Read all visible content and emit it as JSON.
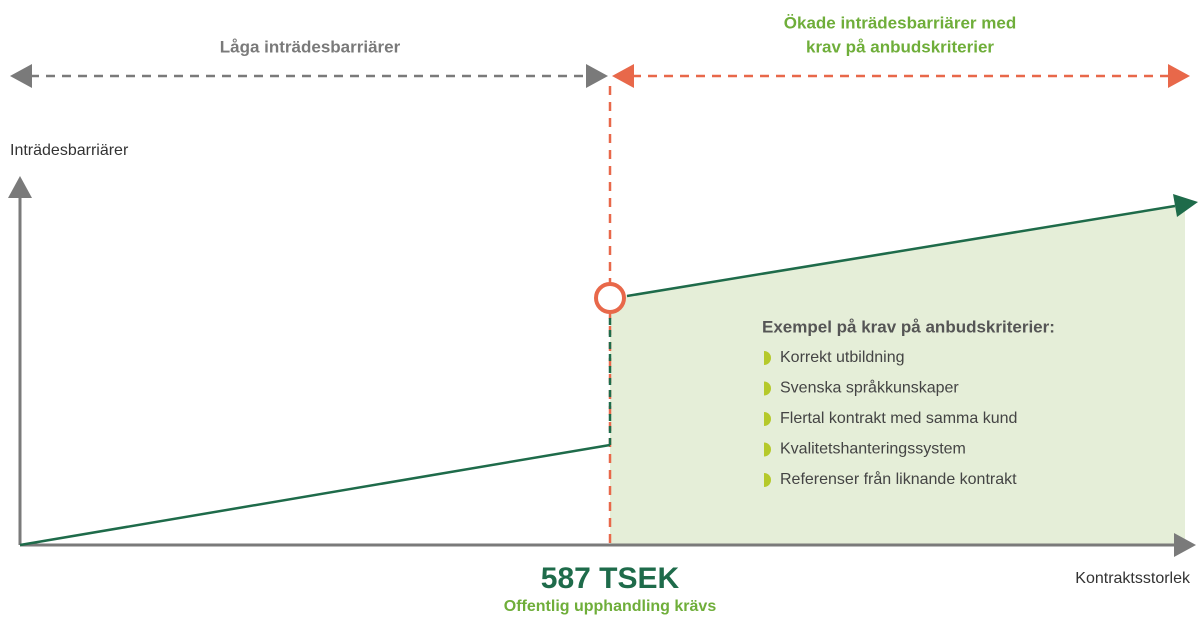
{
  "header": {
    "left_label": "Låga inträdesbarriärer",
    "right_label_line1": "Ökade inträdesbarriärer med",
    "right_label_line2": "krav på anbudskriterier"
  },
  "axes": {
    "y_label": "Inträdesbarriärer",
    "x_label": "Kontraktsstorlek"
  },
  "threshold": {
    "amount": "587 TSEK",
    "note": "Offentlig upphandling krävs"
  },
  "criteria": {
    "title": "Exempel på krav på anbudskriterier:",
    "items": [
      "Korrekt utbildning",
      "Svenska språkkunskaper",
      "Flertal kontrakt med samma kund",
      "Kvalitetshanteringssystem",
      "Referenser från liknande kontrakt"
    ]
  }
}
